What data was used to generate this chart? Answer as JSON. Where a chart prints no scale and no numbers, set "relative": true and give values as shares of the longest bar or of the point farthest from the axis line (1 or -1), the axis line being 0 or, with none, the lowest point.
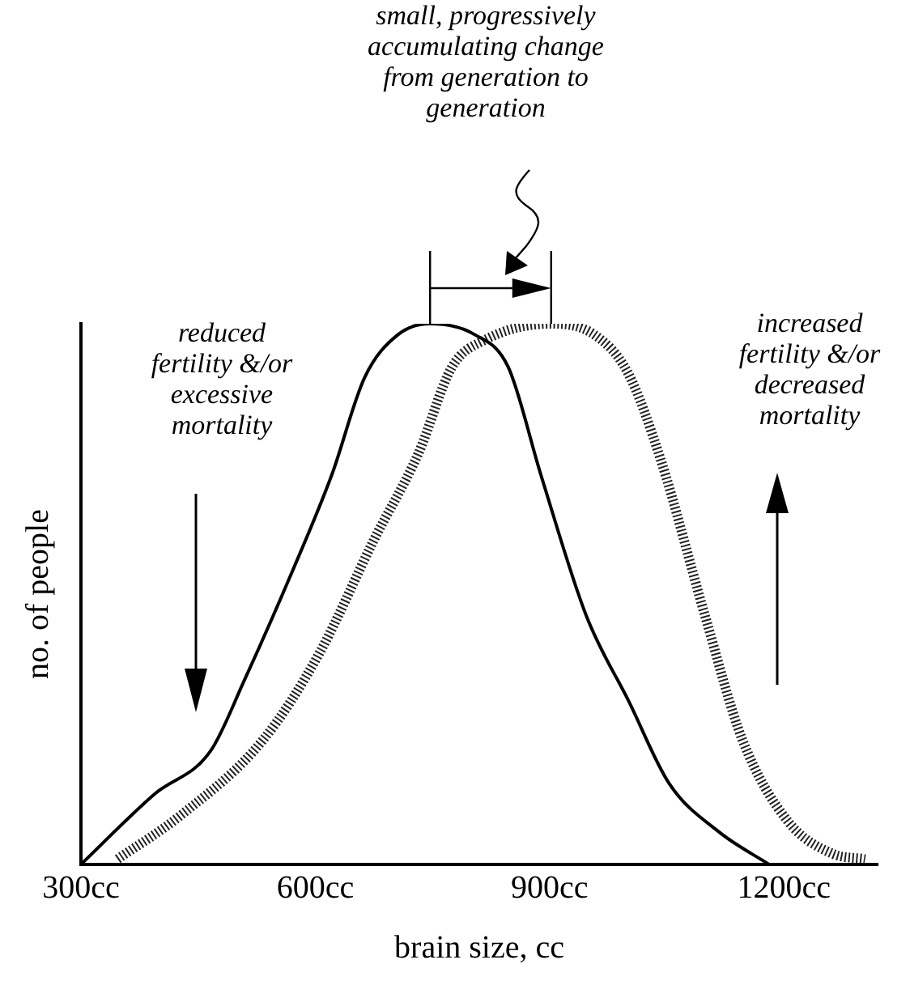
{
  "chart_data": {
    "type": "line",
    "relative": true,
    "xlabel": "brain size, cc",
    "ylabel": "no. of people",
    "xlim": [
      300,
      1320
    ],
    "xticks": [
      {
        "value": 300,
        "label": "300cc"
      },
      {
        "value": 600,
        "label": "600cc"
      },
      {
        "value": 900,
        "label": "900cc"
      },
      {
        "value": 1200,
        "label": "1200cc"
      }
    ],
    "grid": false,
    "legend": false,
    "marker": "none",
    "series": [
      {
        "color": "#000000",
        "line_style": "solid",
        "x": [
          300,
          394,
          466,
          509,
          570,
          621,
          663,
          706,
          747,
          804,
          847,
          889,
          947,
          1002,
          1053,
          1117,
          1181
        ],
        "values": [
          0,
          0.13,
          0.21,
          0.34,
          0.54,
          0.72,
          0.9,
          0.98,
          1,
          0.98,
          0.92,
          0.72,
          0.46,
          0.3,
          0.15,
          0.06,
          0
        ]
      },
      {
        "color": "#222222",
        "line_style": "dotted",
        "x": [
          347,
          427,
          533,
          605,
          675,
          732,
          775,
          817,
          902,
          957,
          1000,
          1042,
          1099,
          1147,
          1205,
          1262,
          1304
        ],
        "values": [
          0.01,
          0.09,
          0.23,
          0.39,
          0.6,
          0.76,
          0.92,
          0.97,
          1,
          0.98,
          0.91,
          0.75,
          0.46,
          0.23,
          0.08,
          0.02,
          0.01
        ]
      }
    ],
    "annotations": [
      "small, progressively accumulating change from generation to generation",
      "reduced fertility &/or excessive mortality",
      "increased fertility &/or decreased mortality"
    ]
  }
}
